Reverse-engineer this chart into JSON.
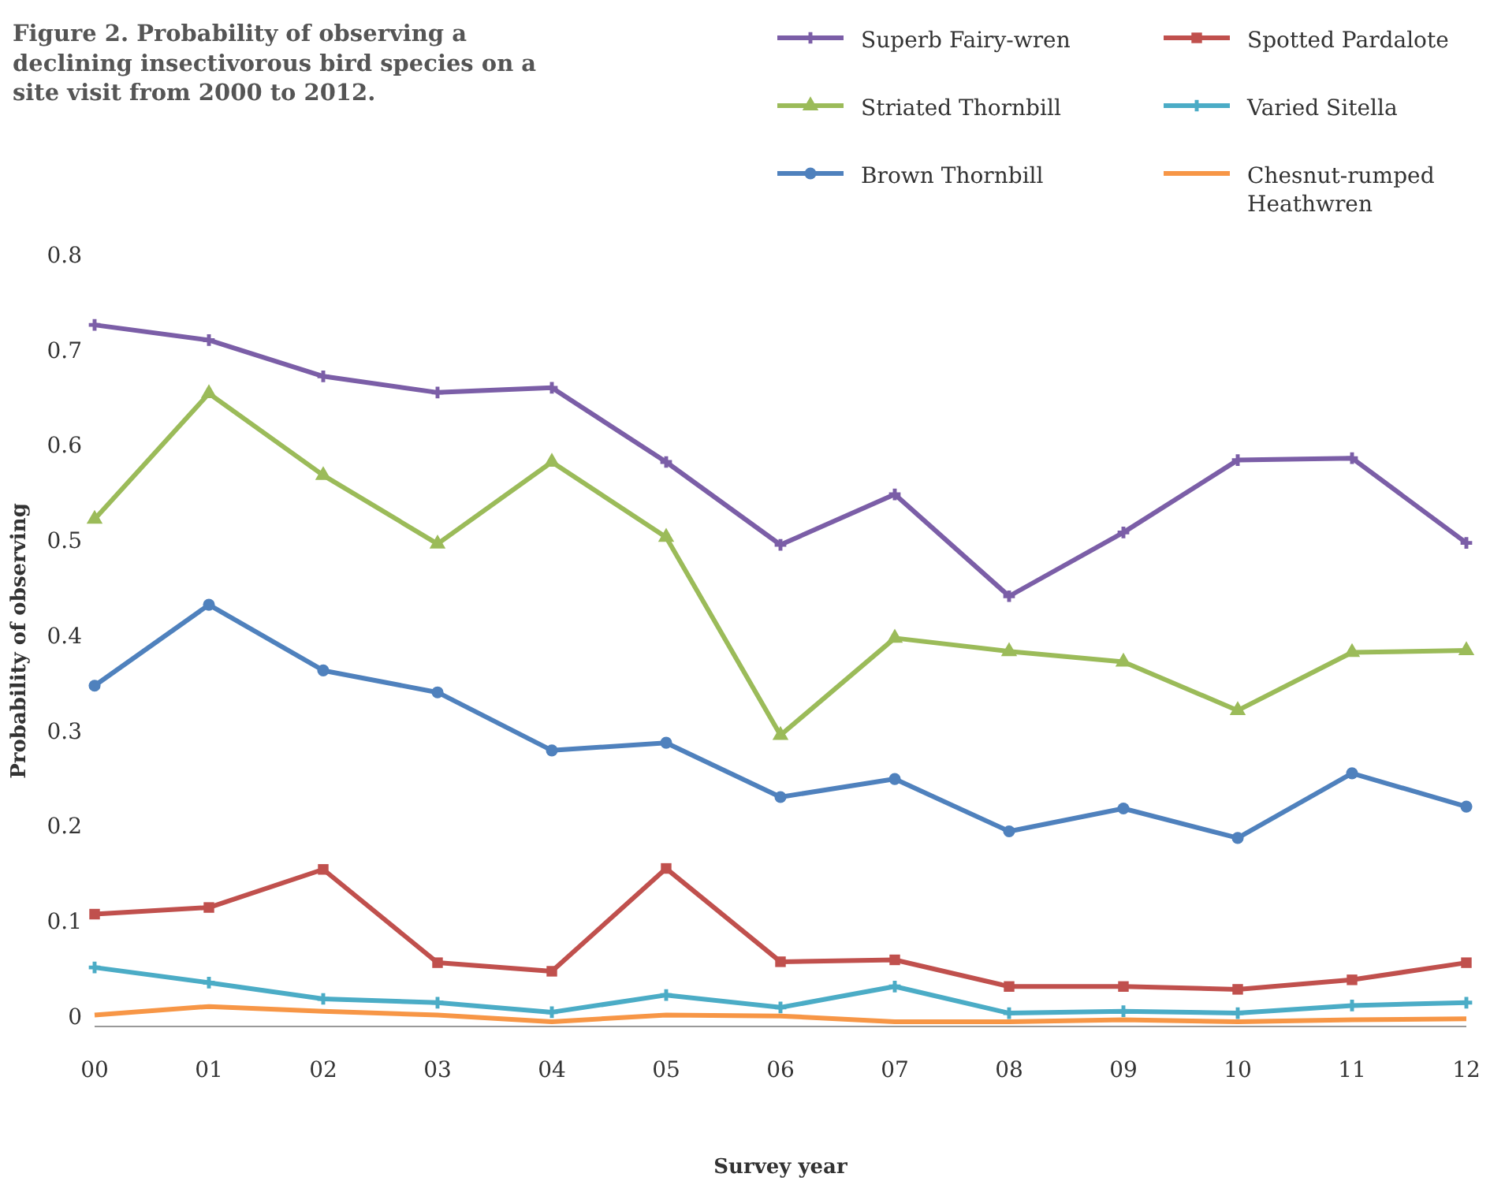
{
  "chart_data": {
    "type": "line",
    "title": "Figure 2. Probability of observing a declining insectivorous bird species on a site visit from 2000 to 2012.",
    "xlabel": "Survey year",
    "ylabel": "Probability of observing",
    "categories": [
      "00",
      "01",
      "02",
      "03",
      "04",
      "05",
      "06",
      "07",
      "08",
      "09",
      "10",
      "11",
      "12"
    ],
    "ylim": [
      -0.01,
      0.8
    ],
    "yticks": [
      0,
      0.1,
      0.2,
      0.3,
      0.4,
      0.5,
      0.6,
      0.7,
      0.8
    ],
    "grid": false,
    "legend": "top right",
    "line_style": "solid",
    "series": [
      {
        "name": "Superb Fairy-wren",
        "color": "#7b5ea7",
        "marker": "cross",
        "values": [
          0.727,
          0.711,
          0.673,
          0.656,
          0.661,
          0.583,
          0.496,
          0.549,
          0.442,
          0.509,
          0.585,
          0.587,
          0.498
        ]
      },
      {
        "name": "Spotted Pardalote",
        "color": "#c0504d",
        "marker": "square",
        "values": [
          0.108,
          0.115,
          0.155,
          0.057,
          0.048,
          0.156,
          0.058,
          0.06,
          0.032,
          0.032,
          0.029,
          0.039,
          0.057
        ]
      },
      {
        "name": "Striated Thornbill",
        "color": "#9bbb59",
        "marker": "triangle",
        "values": [
          0.523,
          0.655,
          0.569,
          0.497,
          0.583,
          0.504,
          0.296,
          0.398,
          0.384,
          0.373,
          0.322,
          0.383,
          0.385
        ]
      },
      {
        "name": "Varied Sitella",
        "color": "#4bacc6",
        "marker": "cross",
        "values": [
          0.052,
          0.036,
          0.019,
          0.015,
          0.005,
          0.023,
          0.01,
          0.032,
          0.004,
          0.006,
          0.004,
          0.012,
          0.015
        ]
      },
      {
        "name": "Brown Thornbill",
        "color": "#4f81bd",
        "marker": "circle",
        "values": [
          0.348,
          0.433,
          0.364,
          0.341,
          0.28,
          0.288,
          0.231,
          0.25,
          0.195,
          0.219,
          0.188,
          0.256,
          0.221
        ]
      },
      {
        "name": "Chesnut-rumped Heathwren",
        "color": "#f79646",
        "marker": "none",
        "values": [
          0.002,
          0.011,
          0.006,
          0.002,
          -0.005,
          0.002,
          0.001,
          -0.005,
          -0.005,
          -0.003,
          -0.005,
          -0.003,
          -0.002
        ]
      }
    ]
  }
}
